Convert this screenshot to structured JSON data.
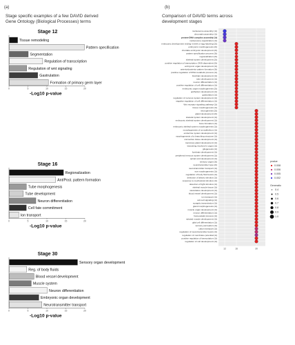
{
  "panel_a": {
    "label": "(a)",
    "title_line1": "Stage specific examples of a few DAVID derived",
    "title_line2": "Gene Ontology (Biological Processes) terms"
  },
  "panel_b": {
    "label": "(b)",
    "title_line1": "Comparison of DAVID terms across",
    "title_line2": "development stages"
  },
  "chart_data": [
    {
      "type": "bar",
      "orientation": "horizontal",
      "title": "Stage 12",
      "xlabel": "-Log10 p-value",
      "xlim": [
        0,
        20
      ],
      "xticks": [
        "0",
        "5",
        "10",
        "15",
        "20"
      ],
      "categories": [
        "Tissue remodeling",
        "Pattern specification",
        "Segmentation",
        "Regulation of transcription",
        "Regulation of wnt signaling",
        "Gastrulation",
        "Formation of primary germ layer"
      ],
      "values": [
        2.2,
        19.8,
        5.0,
        8.8,
        4.6,
        7.5,
        10.3
      ],
      "colors": [
        "#111111",
        "#e8e8e8",
        "#666666",
        "#f2f2f2",
        "#9a9a9a",
        "#3d3d3d",
        "#dedede"
      ]
    },
    {
      "type": "bar",
      "orientation": "horizontal",
      "title": "Stage 16",
      "xlabel": "-Log10 p-value",
      "xlim": [
        0,
        20
      ],
      "xticks": [
        "0",
        "5",
        "10",
        "15",
        "20"
      ],
      "categories": [
        "Regionalization",
        "Ant/Post. pattern formation",
        "Tube morphogenesis",
        "Tube development",
        "Neuron differentiation",
        "Cell fate commitment",
        "Ion transport"
      ],
      "values": [
        14.3,
        12.2,
        4.5,
        3.7,
        7.0,
        4.5,
        2.5
      ],
      "colors": [
        "#111111",
        "#f2f2f2",
        "#9a9a9a",
        "#d0d0d0",
        "#888888",
        "#2f2f2f",
        "#e6e6e6"
      ]
    },
    {
      "type": "bar",
      "orientation": "horizontal",
      "title": "Stage 30",
      "xlabel": "-Log10 p-value",
      "xlim": [
        0,
        20
      ],
      "xticks": [
        "0",
        "5",
        "10",
        "15",
        "20"
      ],
      "categories": [
        "Sensory organ development",
        "Reg. of body fluids",
        "Blood vessel development",
        "Muscle system",
        "Neuron differentiation",
        "Embryonic organ development",
        "Neurotransmitter transport"
      ],
      "values": [
        18.0,
        4.6,
        6.5,
        5.8,
        10.0,
        7.8,
        8.6
      ],
      "colors": [
        "#111111",
        "#f4f4f4",
        "#bdbdbd",
        "#7a7a7a",
        "#f2f2f2",
        "#3a3a3a",
        "#e2e2e2"
      ]
    },
    {
      "type": "scatter",
      "title": "Comparison of DAVID terms across development stages",
      "xlabel": "",
      "ylabel": "",
      "x_categories": [
        "12",
        "16",
        "30"
      ],
      "legend_position": "right",
      "legend_pvalue_title": "pvalue",
      "legend_pvalue_labels": [
        "0.008",
        "0.006",
        "0.005",
        "0.002"
      ],
      "legend_pvalue_colors": [
        "#e02020",
        "#c02a6a",
        "#7a30b8",
        "#3c3ae0"
      ],
      "legend_gene_title": "Generatio",
      "legend_gene_labels": [
        "0.4",
        "0.5",
        "0.6",
        "0.7",
        "0.8",
        "0.9",
        "1.0"
      ],
      "groups": [
        {
          "stage": "12",
          "terms": [
            {
              "label": "nucleosome assembly (1t)",
              "bold": false,
              "color": "#3c3ae0",
              "size": 1.0
            },
            {
              "label": "chromatin assembly (1t)",
              "bold": false,
              "color": "#4a38d8",
              "size": 1.0
            },
            {
              "label": "protein-DNA complex assembly (1t)",
              "bold": true,
              "color": "#5836cf",
              "size": 1.0
            },
            {
              "label": "nucleosome organization (1t)",
              "bold": false,
              "color": "#6a34c4",
              "size": 0.9
            }
          ]
        },
        {
          "stage": "16",
          "terms": [
            {
              "label": "embryonic development ending in birth or egg hatching (2t)",
              "bold": false,
              "color": "#e02020",
              "size": 0.9
            },
            {
              "label": "embryonic morphogenesis (2t)",
              "bold": false,
              "color": "#e02020",
              "size": 0.9
            },
            {
              "label": "chordate embryonic development (2t)",
              "bold": false,
              "color": "#e02020",
              "size": 0.9
            },
            {
              "label": "pattern specification process (3t)",
              "bold": false,
              "color": "#e02020",
              "size": 0.7
            },
            {
              "label": "regionalization (2t)",
              "bold": false,
              "color": "#e02020",
              "size": 0.8
            },
            {
              "label": "skeletal system development (2t)",
              "bold": false,
              "color": "#e02020",
              "size": 0.9
            },
            {
              "label": "positive regulation of transcription, DNA-dependent (2t)",
              "bold": false,
              "color": "#e02020",
              "size": 0.8
            },
            {
              "label": "embryonic organ development (1t)",
              "bold": false,
              "color": "#e02020",
              "size": 0.9
            },
            {
              "label": "anterior/posterior pattern formation (3t)",
              "bold": false,
              "color": "#e02020",
              "size": 0.9
            },
            {
              "label": "positive regulation of RNA metabolic process (1t)",
              "bold": false,
              "color": "#e02020",
              "size": 0.8
            },
            {
              "label": "forebrain development (1t)",
              "bold": false,
              "color": "#e02020",
              "size": 0.9
            },
            {
              "label": "tube development (1t)",
              "bold": false,
              "color": "#e02020",
              "size": 0.9
            },
            {
              "label": "neuron differentiation (1t)",
              "bold": false,
              "color": "#e02020",
              "size": 0.9
            },
            {
              "label": "positive regulation of cell differentiation (1t)",
              "bold": false,
              "color": "#e02020",
              "size": 0.9
            },
            {
              "label": "embryonic organ morphogenesis (2t)",
              "bold": false,
              "color": "#e02020",
              "size": 0.8
            },
            {
              "label": "epithelium development (1t)",
              "bold": false,
              "color": "#e02020",
              "size": 0.9
            },
            {
              "label": "gastrulation (1t)",
              "bold": false,
              "color": "#e02020",
              "size": 0.9
            },
            {
              "label": "regulation of nervous system development (1t)",
              "bold": false,
              "color": "#e02020",
              "size": 0.9
            },
            {
              "label": "negative regulation of cell differentiation (1t)",
              "bold": false,
              "color": "#e02020",
              "size": 0.9
            },
            {
              "label": "Wnt receptor signaling pathway (1t)",
              "bold": false,
              "color": "#e02020",
              "size": 0.9
            },
            {
              "label": "tissue morphogenesis (1t)",
              "bold": false,
              "color": "#e02020",
              "size": 0.9
            }
          ]
        },
        {
          "stage": "30",
          "terms": [
            {
              "label": "neurogenesis (2t)",
              "bold": false,
              "color": "#e02020",
              "size": 0.9
            },
            {
              "label": "gland development (2t)",
              "bold": false,
              "color": "#e02020",
              "size": 0.9
            },
            {
              "label": "skeletal system development (1t)",
              "bold": false,
              "color": "#e02020",
              "size": 0.9
            },
            {
              "label": "embryonic skeletal system development (1t)",
              "bold": false,
              "color": "#e02020",
              "size": 0.9
            },
            {
              "label": "bone formation (1t)",
              "bold": false,
              "color": "#e02020",
              "size": 0.9
            },
            {
              "label": "embryonic skeletal system morphogenesis (1t)",
              "bold": false,
              "color": "#e02020",
              "size": 0.9
            },
            {
              "label": "morphogenesis of an epithelium (1t)",
              "bold": false,
              "color": "#e02020",
              "size": 0.9
            },
            {
              "label": "endocrine system development (1t)",
              "bold": false,
              "color": "#e02020",
              "size": 0.9
            },
            {
              "label": "morphogenesis of a branching structure (1t)",
              "bold": false,
              "color": "#e02020",
              "size": 0.9
            },
            {
              "label": "connective tissue development (1t)",
              "bold": false,
              "color": "#e02020",
              "size": 0.9
            },
            {
              "label": "mammary gland development (1t)",
              "bold": false,
              "color": "#e02020",
              "size": 0.9
            },
            {
              "label": "branching involved in organ (1t)",
              "bold": false,
              "color": "#e02020",
              "size": 0.9
            },
            {
              "label": "gliogenesis (1t)",
              "bold": false,
              "color": "#e02020",
              "size": 0.9
            },
            {
              "label": "forebrain development (1t)",
              "bold": false,
              "color": "#e02020",
              "size": 0.9
            },
            {
              "label": "peripheral nervous system development (1t)",
              "bold": false,
              "color": "#e02020",
              "size": 0.9
            },
            {
              "label": "spinal cord development (1t)",
              "bold": false,
              "color": "#e02020",
              "size": 0.9
            }
          ]
        },
        {
          "stage": "30b",
          "terms": [
            {
              "label": "sensory organ (3t)",
              "bold": false,
              "color": "#e02020",
              "size": 0.9
            },
            {
              "label": "neurotransmitter type (2t)",
              "bold": false,
              "color": "#e02020",
              "size": 0.9
            },
            {
              "label": "neurotransmitter transport (1t)",
              "bold": false,
              "color": "#e02020",
              "size": 0.9
            },
            {
              "label": "eye morphogenesis (1t)",
              "bold": false,
              "color": "#e02020",
              "size": 0.9
            },
            {
              "label": "regulation of body fluid levels (1t)",
              "bold": false,
              "color": "#e02020",
              "size": 0.9
            },
            {
              "label": "detection of abiotic stimulus (1t)",
              "bold": false,
              "color": "#e02020",
              "size": 0.9
            },
            {
              "label": "response to mechanical stimulus (1t)",
              "bold": false,
              "color": "#e02020",
              "size": 0.9
            },
            {
              "label": "detection of light stimulus (1t)",
              "bold": false,
              "color": "#e02020",
              "size": 0.9
            },
            {
              "label": "skeletal muscle tissue (1t)",
              "bold": false,
              "color": "#e02020",
              "size": 0.9
            },
            {
              "label": "vasculature development (1t)",
              "bold": false,
              "color": "#e02020",
              "size": 0.9
            },
            {
              "label": "blood vessel development (1t)",
              "bold": false,
              "color": "#e02020",
              "size": 0.9
            },
            {
              "label": "ion transport (1t)",
              "bold": false,
              "color": "#e02020",
              "size": 0.9
            },
            {
              "label": "cell-cell signaling (1t)",
              "bold": false,
              "color": "#e02020",
              "size": 0.9
            },
            {
              "label": "synaptic transmission (1t)",
              "bold": false,
              "color": "#e02020",
              "size": 0.9
            },
            {
              "label": "gland morphogenesis (1t)",
              "bold": false,
              "color": "#e02020",
              "size": 0.9
            },
            {
              "label": "muscle organ development (1t)",
              "bold": false,
              "color": "#e02020",
              "size": 0.9
            },
            {
              "label": "neuron differentiation (1t)",
              "bold": false,
              "color": "#e02020",
              "size": 0.9
            },
            {
              "label": "homeostatic process (1t)",
              "bold": false,
              "color": "#e02020",
              "size": 0.9
            },
            {
              "label": "striated muscle development (1t)",
              "bold": false,
              "color": "#e02020",
              "size": 0.9
            },
            {
              "label": "glial cell differentiation (1t)",
              "bold": false,
              "color": "#e02020",
              "size": 0.9
            },
            {
              "label": "sensory perception (1t)",
              "bold": false,
              "color": "#e02020",
              "size": 0.9
            },
            {
              "label": "cation transport (1t)",
              "bold": false,
              "color": "#c02a6a",
              "size": 0.9
            },
            {
              "label": "regulation of neurotransmitter levels (1t)",
              "bold": false,
              "color": "#c02a6a",
              "size": 0.9
            },
            {
              "label": "regulation of membrane potential (1t)",
              "bold": false,
              "color": "#a02e8a",
              "size": 0.9
            },
            {
              "label": "positive regulation of transcription (1t)",
              "bold": false,
              "color": "#e02020",
              "size": 0.9
            },
            {
              "label": "regulation of cell development (1t)",
              "bold": false,
              "color": "#e02020",
              "size": 0.9
            }
          ]
        }
      ]
    }
  ]
}
